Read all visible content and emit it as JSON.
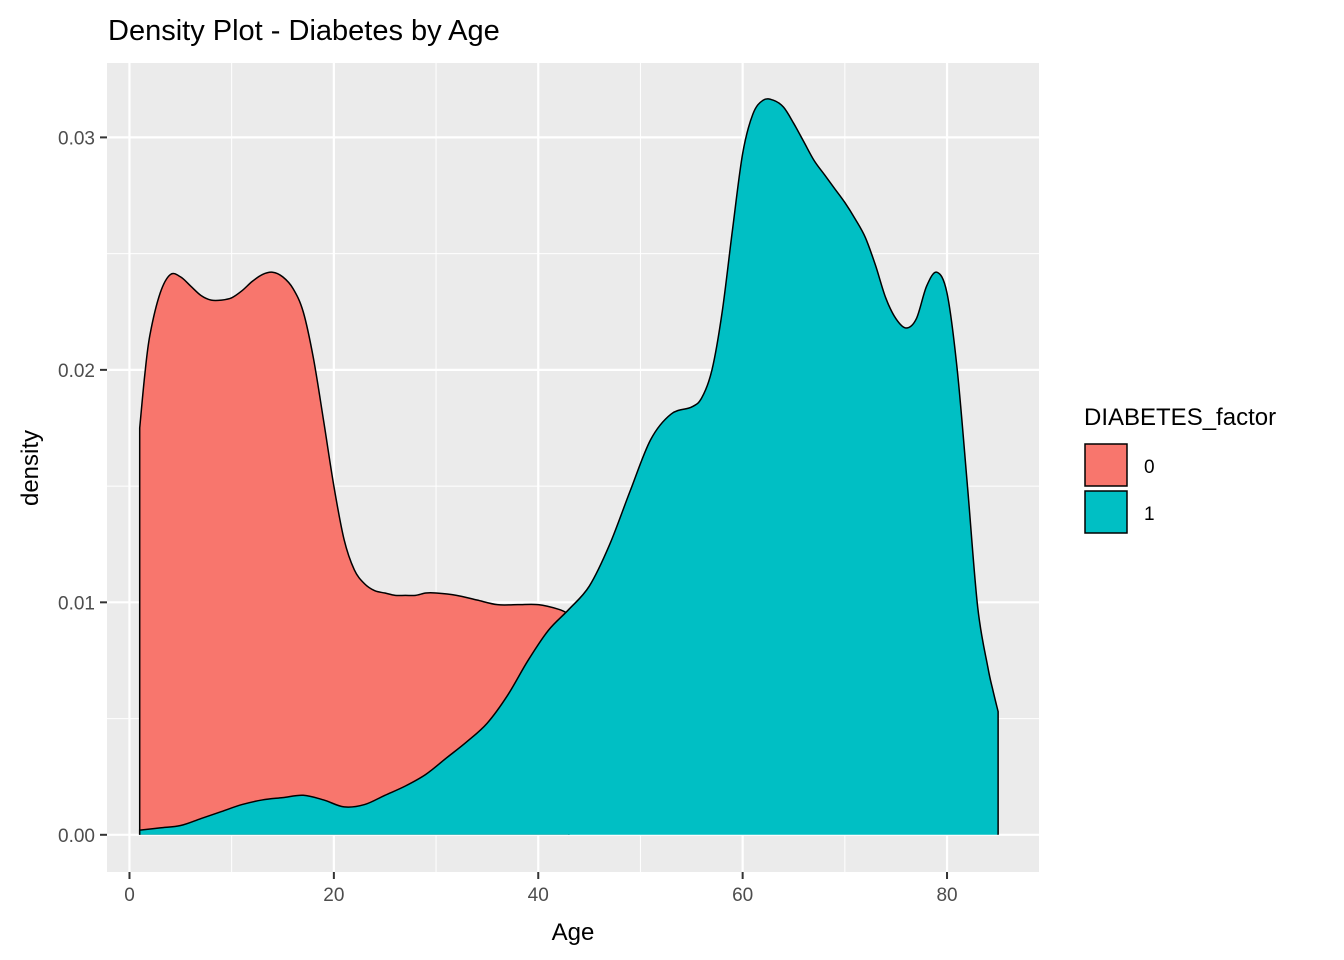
{
  "chart_data": {
    "type": "area",
    "title": "Density Plot - Diabetes by Age",
    "xlabel": "Age",
    "ylabel": "density",
    "xlim": [
      -2.2,
      89
    ],
    "ylim": [
      -0.0016,
      0.0332
    ],
    "x_ticks": [
      0,
      20,
      40,
      60,
      80
    ],
    "x_tick_labels": [
      "0",
      "20",
      "40",
      "60",
      "80"
    ],
    "y_ticks": [
      0,
      0.01,
      0.02,
      0.03
    ],
    "y_tick_labels": [
      "0.00",
      "0.01",
      "0.02",
      "0.03"
    ],
    "grid": true,
    "panel_background": "#ebebeb",
    "legend": {
      "title": "DIABETES_factor",
      "position": "right",
      "entries": [
        {
          "label": "0",
          "color": "#f8766d"
        },
        {
          "label": "1",
          "color": "#00bfc4"
        }
      ]
    },
    "series": [
      {
        "name": "0",
        "color": "#f8766d",
        "points": [
          [
            1,
            0.0175
          ],
          [
            1.5,
            0.0198
          ],
          [
            2,
            0.0215
          ],
          [
            3,
            0.0233
          ],
          [
            4,
            0.0241
          ],
          [
            5,
            0.024
          ],
          [
            6,
            0.0236
          ],
          [
            7,
            0.0232
          ],
          [
            8,
            0.023
          ],
          [
            9,
            0.023
          ],
          [
            10,
            0.0231
          ],
          [
            11,
            0.0234
          ],
          [
            12,
            0.0238
          ],
          [
            13,
            0.0241
          ],
          [
            14,
            0.0242
          ],
          [
            15,
            0.024
          ],
          [
            16,
            0.0235
          ],
          [
            17,
            0.0225
          ],
          [
            18,
            0.0205
          ],
          [
            19,
            0.0178
          ],
          [
            20,
            0.015
          ],
          [
            21,
            0.0127
          ],
          [
            22,
            0.0114
          ],
          [
            23,
            0.0108
          ],
          [
            24,
            0.0105
          ],
          [
            25,
            0.0104
          ],
          [
            26,
            0.0103
          ],
          [
            27,
            0.0103
          ],
          [
            28,
            0.0103
          ],
          [
            29,
            0.0104
          ],
          [
            30,
            0.0104
          ],
          [
            32,
            0.0103
          ],
          [
            34,
            0.0101
          ],
          [
            36,
            0.0099
          ],
          [
            38,
            0.0099
          ],
          [
            40,
            0.0099
          ],
          [
            42,
            0.0097
          ],
          [
            43,
            0.0095
          ]
        ]
      },
      {
        "name": "1",
        "color": "#00bfc4",
        "points": [
          [
            1,
            0.0002
          ],
          [
            3,
            0.0003
          ],
          [
            5,
            0.0004
          ],
          [
            7,
            0.0007
          ],
          [
            9,
            0.001
          ],
          [
            11,
            0.0013
          ],
          [
            13,
            0.0015
          ],
          [
            15,
            0.0016
          ],
          [
            17,
            0.0017
          ],
          [
            19,
            0.0015
          ],
          [
            21,
            0.0012
          ],
          [
            23,
            0.0013
          ],
          [
            25,
            0.0017
          ],
          [
            27,
            0.0021
          ],
          [
            29,
            0.0026
          ],
          [
            31,
            0.0033
          ],
          [
            33,
            0.004
          ],
          [
            35,
            0.0048
          ],
          [
            37,
            0.006
          ],
          [
            39,
            0.0075
          ],
          [
            41,
            0.0088
          ],
          [
            43,
            0.0097
          ],
          [
            45,
            0.0107
          ],
          [
            47,
            0.0125
          ],
          [
            49,
            0.0148
          ],
          [
            51,
            0.017
          ],
          [
            53,
            0.0181
          ],
          [
            55,
            0.0184
          ],
          [
            56,
            0.0188
          ],
          [
            57,
            0.02
          ],
          [
            58,
            0.0225
          ],
          [
            59,
            0.026
          ],
          [
            60,
            0.0293
          ],
          [
            61,
            0.031
          ],
          [
            62,
            0.0316
          ],
          [
            63,
            0.0316
          ],
          [
            64,
            0.0313
          ],
          [
            65,
            0.0306
          ],
          [
            66,
            0.0298
          ],
          [
            67,
            0.029
          ],
          [
            68,
            0.0284
          ],
          [
            69,
            0.0278
          ],
          [
            70,
            0.0272
          ],
          [
            71,
            0.0265
          ],
          [
            72,
            0.0257
          ],
          [
            73,
            0.0245
          ],
          [
            74,
            0.0231
          ],
          [
            75,
            0.0222
          ],
          [
            76,
            0.0218
          ],
          [
            77,
            0.0222
          ],
          [
            78,
            0.0236
          ],
          [
            79,
            0.0242
          ],
          [
            80,
            0.0233
          ],
          [
            81,
            0.02
          ],
          [
            82,
            0.015
          ],
          [
            83,
            0.0098
          ],
          [
            84,
            0.0072
          ],
          [
            84.5,
            0.0062
          ],
          [
            85,
            0.0053
          ]
        ]
      }
    ]
  }
}
